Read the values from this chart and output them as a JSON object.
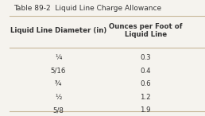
{
  "title": "Table 89-2  Liquid Line Charge Allowance",
  "col1_header": "Liquid Line Diameter (in)",
  "col2_header": "Ounces per Foot of\nLiquid Line",
  "rows": [
    [
      "¼",
      "0.3"
    ],
    [
      "5/16",
      "0.4"
    ],
    [
      "¾",
      "0.6"
    ],
    [
      "½",
      "1.2"
    ],
    [
      "5/8",
      "1.9"
    ]
  ],
  "bg_color": "#f5f3ee",
  "title_color": "#333333",
  "header_color": "#333333",
  "row_color": "#333333",
  "line_color": "#c8b89a",
  "title_fontsize": 6.5,
  "header_fontsize": 6.2,
  "row_fontsize": 6.2
}
